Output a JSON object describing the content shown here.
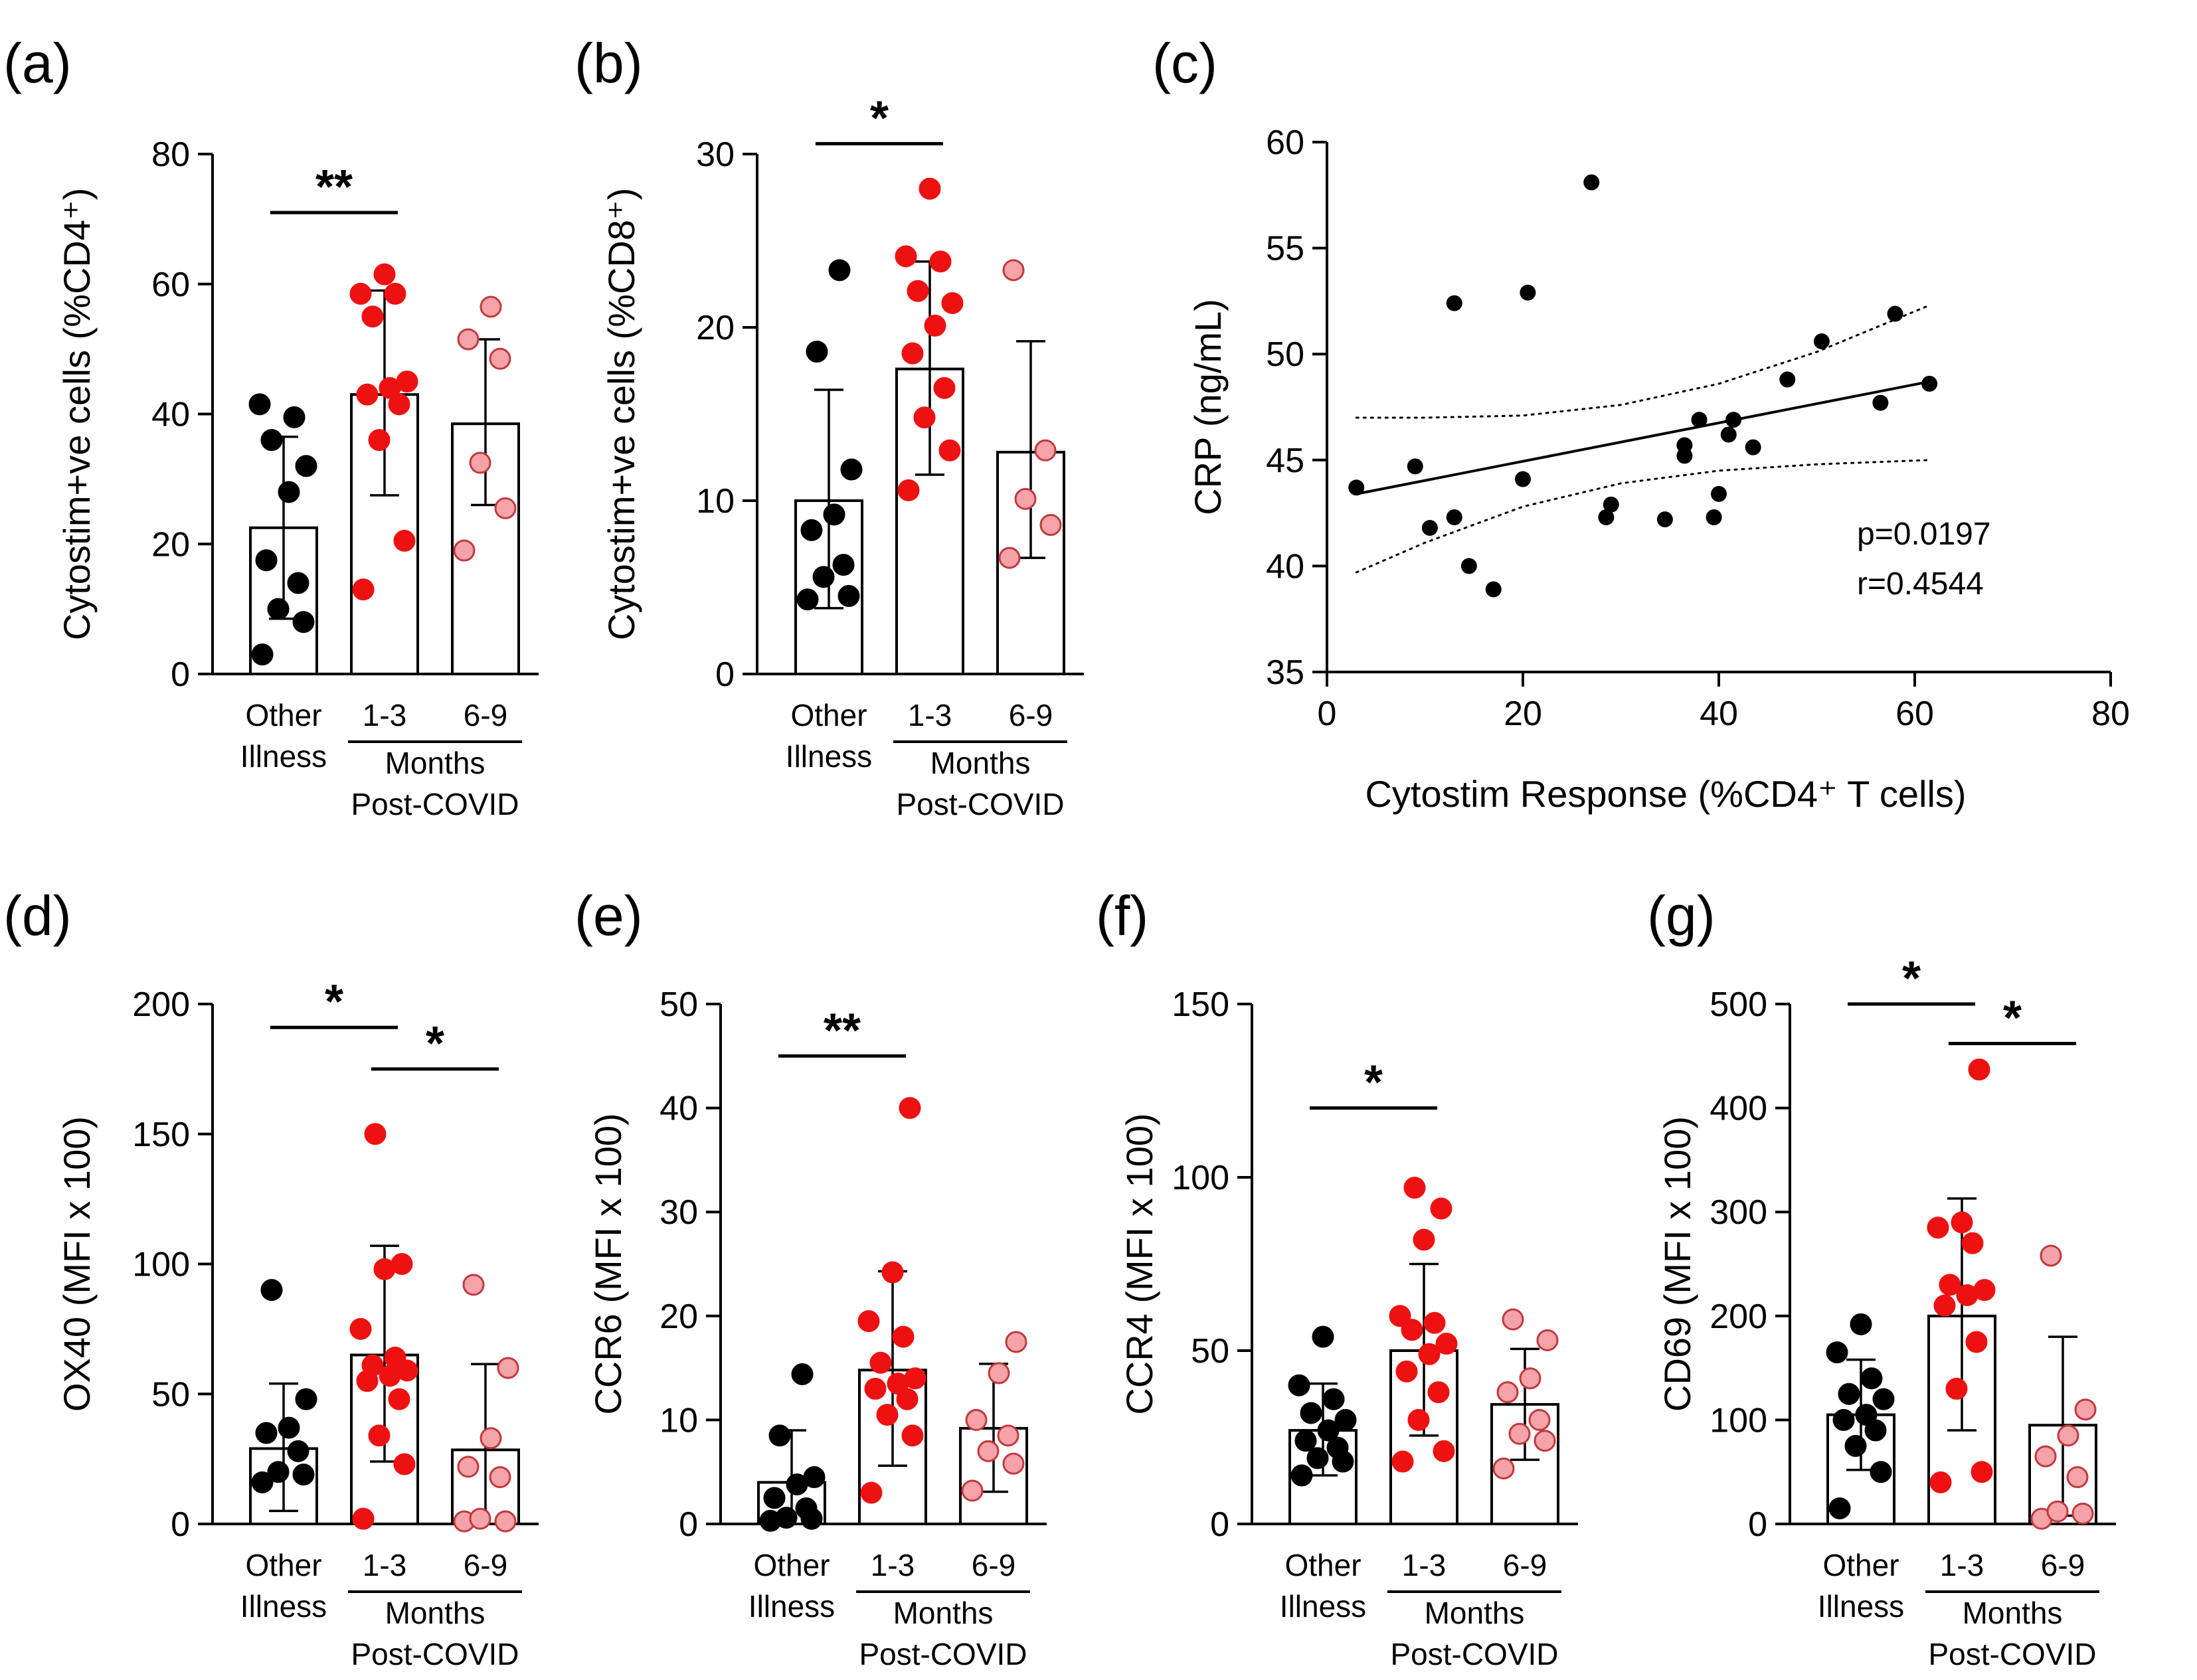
{
  "colors": {
    "other": "#000000",
    "early": "#ee1111",
    "late": "#f4a3a8",
    "late_stroke": "#c0393f"
  },
  "chart_data": [
    {
      "panel": "(a)",
      "type": "bar",
      "ylabel": "Cytostim+ve cells (%CD4⁺)",
      "ylim": [
        0,
        80
      ],
      "yticks": [
        "0",
        "20",
        "40",
        "60",
        "80"
      ],
      "categories": [
        "Other Illness",
        "1-3",
        "6-9"
      ],
      "cat_lines": [
        [
          "Other",
          "Illness"
        ],
        [
          "1-3"
        ],
        [
          "6-9"
        ]
      ],
      "group_label": [
        "Months",
        "Post-COVID"
      ],
      "means": [
        22.5,
        43,
        38.5
      ],
      "sd_low": [
        8.5,
        27.5,
        26
      ],
      "sd_high": [
        36.5,
        59,
        51.5
      ],
      "points": [
        [
          3,
          8,
          10,
          14,
          17.5,
          28,
          32,
          36,
          39.5,
          41.5
        ],
        [
          13,
          20.5,
          36,
          41.5,
          43,
          44,
          45,
          55,
          58.5,
          58.5,
          61.5
        ],
        [
          19,
          25.5,
          32.5,
          48.5,
          51.5,
          56.5
        ]
      ],
      "significance": [
        {
          "from": 0,
          "to": 1,
          "label": "**",
          "y": 71
        }
      ]
    },
    {
      "panel": "(b)",
      "type": "bar",
      "ylabel": "Cytostim+ve cells (%CD8⁺)",
      "ylim": [
        0,
        30
      ],
      "yticks": [
        "0",
        "10",
        "20",
        "30"
      ],
      "categories": [
        "Other Illness",
        "1-3",
        "6-9"
      ],
      "cat_lines": [
        [
          "Other",
          "Illness"
        ],
        [
          "1-3"
        ],
        [
          "6-9"
        ]
      ],
      "group_label": [
        "Months",
        "Post-COVID"
      ],
      "means": [
        10,
        17.6,
        12.8
      ],
      "sd_low": [
        3.8,
        11.5,
        6.7
      ],
      "sd_high": [
        16.4,
        23.8,
        19.2
      ],
      "points": [
        [
          4.3,
          4.5,
          5.6,
          6.3,
          8.3,
          9.2,
          11.8,
          18.6,
          23.3
        ],
        [
          10.6,
          12.9,
          14.8,
          16.5,
          18.5,
          20.1,
          21.4,
          22.1,
          23.8,
          24.1,
          28
        ],
        [
          6.7,
          8.6,
          10.1,
          12.9,
          23.3
        ]
      ],
      "significance": [
        {
          "from": 0,
          "to": 1,
          "label": "*",
          "y": 30.6
        }
      ]
    },
    {
      "panel": "(c)",
      "type": "scatter",
      "xlabel": "Cytostim Response (%CD4⁺  T cells)",
      "ylabel": "CRP (ng/mL)",
      "xlim": [
        0,
        80
      ],
      "ylim": [
        35,
        60
      ],
      "xticks": [
        "0",
        "20",
        "40",
        "60",
        "80"
      ],
      "yticks": [
        "35",
        "40",
        "45",
        "50",
        "55",
        "60"
      ],
      "x": [
        3,
        9,
        10.5,
        13,
        13,
        14.5,
        17,
        20,
        20.5,
        27,
        28.5,
        29,
        34.5,
        36.5,
        36.5,
        38,
        39.5,
        40,
        41,
        41.5,
        43.5,
        47,
        50.5,
        56.5,
        58,
        61.5
      ],
      "y": [
        43.7,
        44.7,
        41.8,
        52.4,
        42.3,
        40,
        38.9,
        44.1,
        52.9,
        58.1,
        42.3,
        42.9,
        42.2,
        45.2,
        45.7,
        46.9,
        42.3,
        43.4,
        46.2,
        46.9,
        45.6,
        48.8,
        50.6,
        47.7,
        51.9,
        48.6
      ],
      "fit": {
        "x": [
          3,
          61.5
        ],
        "y": [
          43.4,
          48.7
        ]
      },
      "ci_upper": {
        "x": [
          3,
          10,
          20,
          30,
          40,
          50,
          61.5
        ],
        "y": [
          47.0,
          47.0,
          47.1,
          47.6,
          48.6,
          50.1,
          52.3
        ]
      },
      "ci_lower": {
        "x": [
          3,
          10,
          20,
          30,
          40,
          50,
          61.5
        ],
        "y": [
          39.7,
          41.1,
          42.8,
          43.9,
          44.5,
          44.8,
          45.0
        ]
      },
      "stats": {
        "p": "p=0.0197",
        "r": "r=0.4544"
      }
    },
    {
      "panel": "(d)",
      "type": "bar",
      "ylabel": "OX40 (MFI x 100)",
      "ylim": [
        0,
        200
      ],
      "yticks": [
        "0",
        "50",
        "100",
        "150",
        "200"
      ],
      "categories": [
        "Other Illness",
        "1-3",
        "6-9"
      ],
      "cat_lines": [
        [
          "Other",
          "Illness"
        ],
        [
          "1-3"
        ],
        [
          "6-9"
        ]
      ],
      "group_label": [
        "Months",
        "Post-COVID"
      ],
      "means": [
        29,
        65,
        28.5
      ],
      "sd_low": [
        5,
        24,
        0
      ],
      "sd_high": [
        54,
        107,
        61.5
      ],
      "points": [
        [
          16,
          19,
          20,
          28,
          35,
          37,
          48,
          90
        ],
        [
          2,
          23,
          34,
          48,
          55,
          57,
          59,
          61,
          64,
          75,
          98,
          100,
          150
        ],
        [
          1,
          1,
          2,
          18,
          22,
          33,
          60,
          92
        ]
      ],
      "significance": [
        {
          "from": 0,
          "to": 1,
          "label": "*",
          "y": 191
        },
        {
          "from": 1,
          "to": 2,
          "label": "*",
          "y": 175
        }
      ]
    },
    {
      "panel": "(e)",
      "type": "bar",
      "ylabel": "CCR6 (MFI x 100)",
      "ylim": [
        0,
        50
      ],
      "yticks": [
        "0",
        "10",
        "20",
        "30",
        "40",
        "50"
      ],
      "categories": [
        "Other Illness",
        "1-3",
        "6-9"
      ],
      "cat_lines": [
        [
          "Other",
          "Illness"
        ],
        [
          "1-3"
        ],
        [
          "6-9"
        ]
      ],
      "group_label": [
        "Months",
        "Post-COVID"
      ],
      "means": [
        4,
        14.8,
        9.2
      ],
      "sd_low": [
        0,
        5.6,
        3.1
      ],
      "sd_high": [
        9,
        24.3,
        15.4
      ],
      "points": [
        [
          0.3,
          0.5,
          0.6,
          1.5,
          2.5,
          3.8,
          4.5,
          8.5,
          14.4
        ],
        [
          3,
          8.5,
          10.5,
          12,
          13,
          13.5,
          14,
          15.5,
          18,
          19.5,
          24.2,
          40
        ],
        [
          3.2,
          5.8,
          7,
          8.5,
          10,
          14.5,
          17.5
        ]
      ],
      "significance": [
        {
          "from": 0,
          "to": 1,
          "label": "**",
          "y": 45
        }
      ]
    },
    {
      "panel": "(f)",
      "type": "bar",
      "ylabel": "CCR4 (MFI x 100)",
      "ylim": [
        0,
        150
      ],
      "yticks": [
        "0",
        "50",
        "100",
        "150"
      ],
      "categories": [
        "Other Illness",
        "1-3",
        "6-9"
      ],
      "cat_lines": [
        [
          "Other",
          "Illness"
        ],
        [
          "1-3"
        ],
        [
          "6-9"
        ]
      ],
      "group_label": [
        "Months",
        "Post-COVID"
      ],
      "means": [
        27,
        50,
        34.5
      ],
      "sd_low": [
        14,
        25.5,
        18.5
      ],
      "sd_high": [
        40.5,
        75,
        50.5
      ],
      "points": [
        [
          14,
          18,
          19,
          22,
          24,
          27,
          30,
          32,
          36,
          40,
          54
        ],
        [
          18,
          21,
          30,
          38,
          44,
          49,
          52,
          56,
          58,
          60,
          82,
          91,
          97
        ],
        [
          16,
          24,
          26,
          30,
          38,
          42,
          53,
          59
        ]
      ],
      "significance": [
        {
          "from": 0,
          "to": 1,
          "label": "*",
          "y": 120
        }
      ]
    },
    {
      "panel": "(g)",
      "type": "bar",
      "ylabel": "CD69 (MFI x 100)",
      "ylim": [
        0,
        500
      ],
      "yticks": [
        "0",
        "100",
        "200",
        "300",
        "400",
        "500"
      ],
      "categories": [
        "Other Illness",
        "1-3",
        "6-9"
      ],
      "cat_lines": [
        [
          "Other",
          "Illness"
        ],
        [
          "1-3"
        ],
        [
          "6-9"
        ]
      ],
      "group_label": [
        "Months",
        "Post-COVID"
      ],
      "means": [
        105,
        200,
        95
      ],
      "sd_low": [
        52,
        90,
        8
      ],
      "sd_high": [
        158,
        313,
        180
      ],
      "points": [
        [
          15,
          50,
          75,
          90,
          100,
          105,
          120,
          125,
          140,
          165,
          192
        ],
        [
          40,
          50,
          130,
          175,
          210,
          220,
          225,
          230,
          270,
          285,
          290,
          437
        ],
        [
          5,
          10,
          12,
          45,
          65,
          85,
          110,
          258
        ]
      ],
      "significance": [
        {
          "from": 0,
          "to": 1,
          "label": "*",
          "y": 500
        },
        {
          "from": 1,
          "to": 2,
          "label": "*",
          "y": 462
        }
      ]
    }
  ]
}
